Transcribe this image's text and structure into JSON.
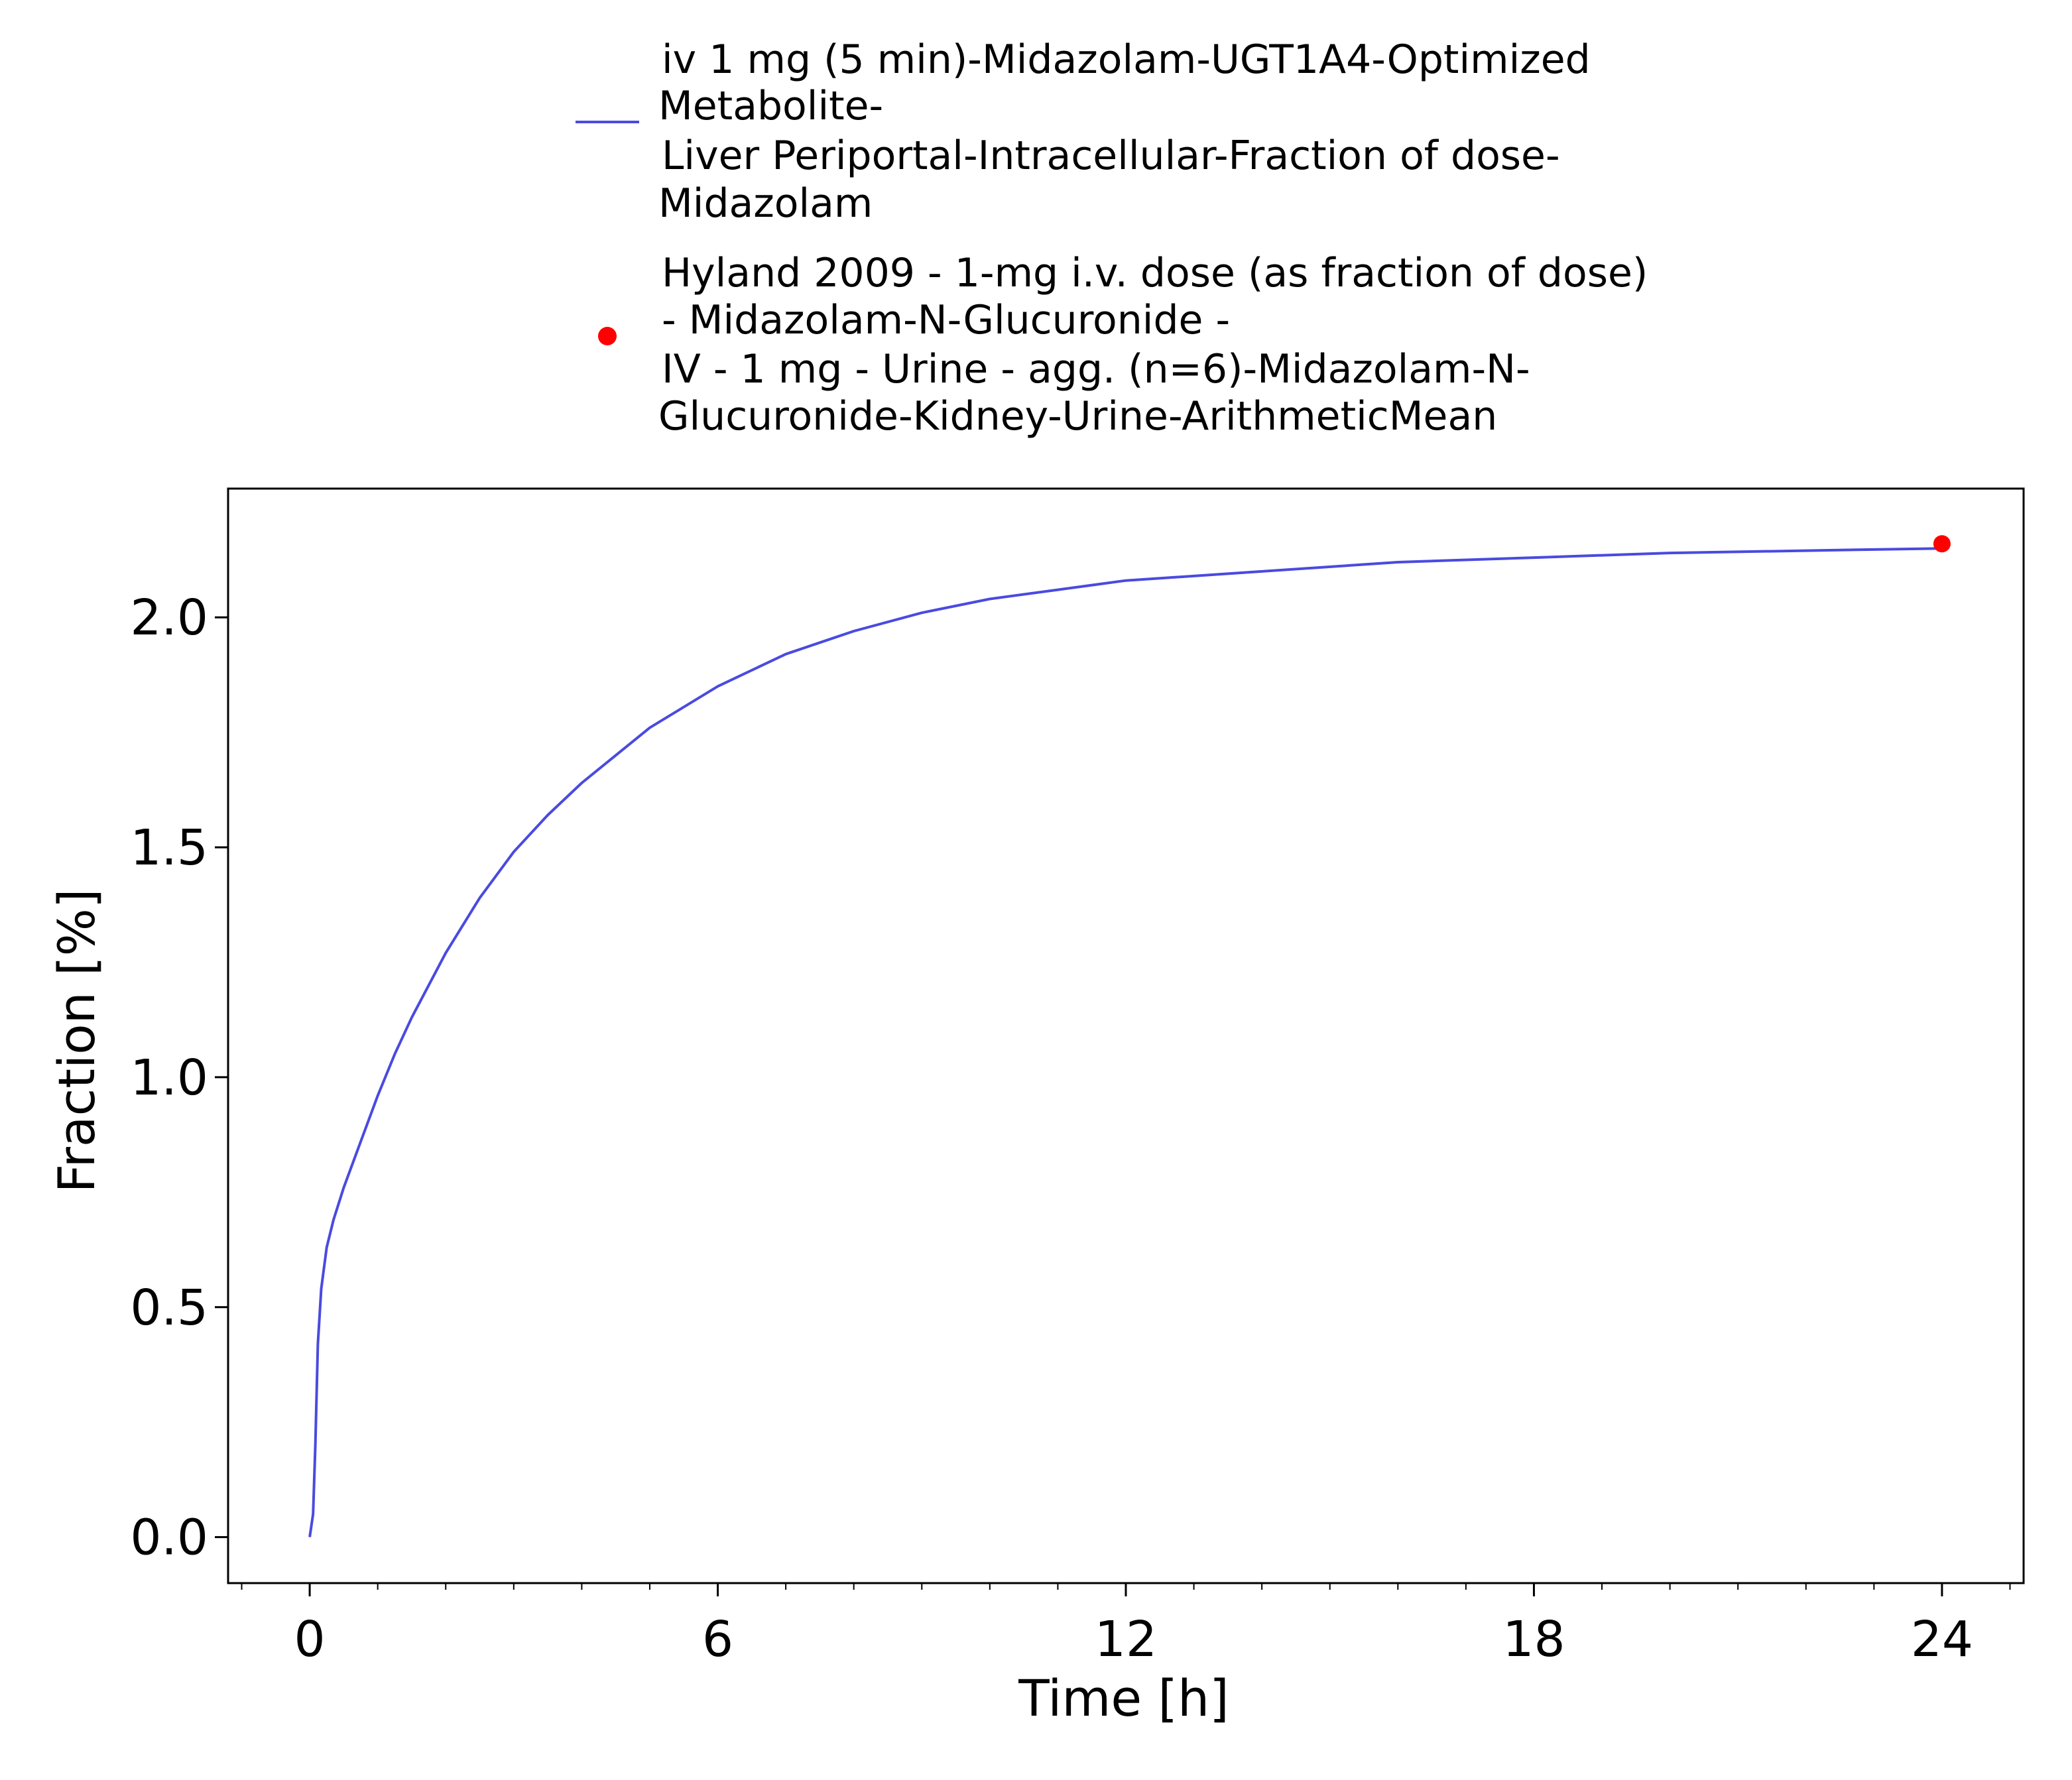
{
  "chart_data": {
    "type": "line",
    "title": "",
    "xlabel": "Time [h]",
    "ylabel": "Fraction [%]",
    "xlim": [
      -1.2,
      25.2
    ],
    "ylim": [
      -0.1,
      2.28
    ],
    "x_ticks": [
      0,
      6,
      12,
      18,
      24
    ],
    "x_tick_labels": [
      "0",
      "6",
      "12",
      "18",
      "24"
    ],
    "x_minor_step": 1,
    "y_ticks": [
      0.0,
      0.5,
      1.0,
      1.5,
      2.0
    ],
    "y_tick_labels": [
      "0.0",
      "0.5",
      "1.0",
      "1.5",
      "2.0"
    ],
    "grid": false,
    "legend_position": "top",
    "series": [
      {
        "name": "iv 1 mg (5 min)-Midazolam-UGT1A4-Optimized Metabolite- Liver Periportal-Intracellular-Fraction of dose- Midazolam",
        "legend_lines": [
          "iv 1 mg (5 min)-Midazolam-UGT1A4-Optimized",
          "Metabolite-",
          "Liver Periportal-Intracellular-Fraction of dose-",
          "Midazolam"
        ],
        "kind": "line",
        "color": "#4a4ae0",
        "x": [
          0,
          0.05,
          0.083,
          0.12,
          0.17,
          0.25,
          0.35,
          0.5,
          0.75,
          1.0,
          1.25,
          1.5,
          2.0,
          2.5,
          3.0,
          3.5,
          4.0,
          5.0,
          6.0,
          7.0,
          8.0,
          9.0,
          10.0,
          11.0,
          12.0,
          14.0,
          16.0,
          18.0,
          20.0,
          22.0,
          24.0
        ],
        "y": [
          0.0,
          0.05,
          0.2,
          0.42,
          0.54,
          0.63,
          0.69,
          0.76,
          0.86,
          0.96,
          1.05,
          1.13,
          1.27,
          1.39,
          1.49,
          1.57,
          1.64,
          1.76,
          1.85,
          1.92,
          1.97,
          2.01,
          2.04,
          2.06,
          2.08,
          2.1,
          2.12,
          2.13,
          2.14,
          2.145,
          2.15
        ]
      },
      {
        "name": "Hyland 2009 - 1-mg i.v. dose (as fraction of dose) - Midazolam-N-Glucuronide - IV - 1 mg - Urine - agg. (n=6)-Midazolam-N- Glucuronide-Kidney-Urine-ArithmeticMean",
        "legend_lines": [
          "Hyland 2009 - 1-mg i.v. dose (as fraction of dose)",
          "- Midazolam-N-Glucuronide -",
          "IV - 1 mg - Urine - agg. (n=6)-Midazolam-N-",
          "Glucuronide-Kidney-Urine-ArithmeticMean"
        ],
        "kind": "scatter",
        "color": "#ff0000",
        "x": [
          24
        ],
        "y": [
          2.16
        ]
      }
    ]
  }
}
